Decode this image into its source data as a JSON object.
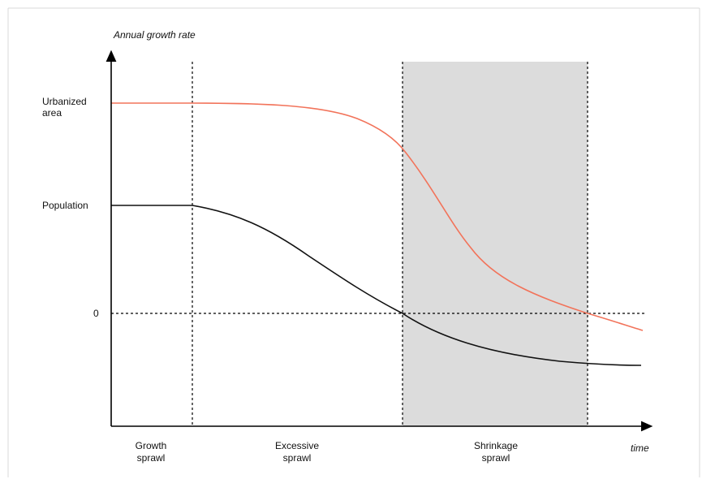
{
  "diagram": {
    "y_axis_title": "Annual growth rate",
    "x_axis_title": "time",
    "y_levels": {
      "urbanized_area": "Urbanized\narea",
      "population": "Population",
      "zero": "0"
    },
    "phases": [
      {
        "label": "Growth\nsprawl"
      },
      {
        "label": "Excessive\nsprawl"
      },
      {
        "label": "Shrinkage\nsprawl",
        "shaded": true
      }
    ],
    "series": [
      {
        "name": "Urbanized area",
        "color": "#f2735a"
      },
      {
        "name": "Population",
        "color": "#111111"
      }
    ],
    "shade_color": "#dcdcdc"
  }
}
